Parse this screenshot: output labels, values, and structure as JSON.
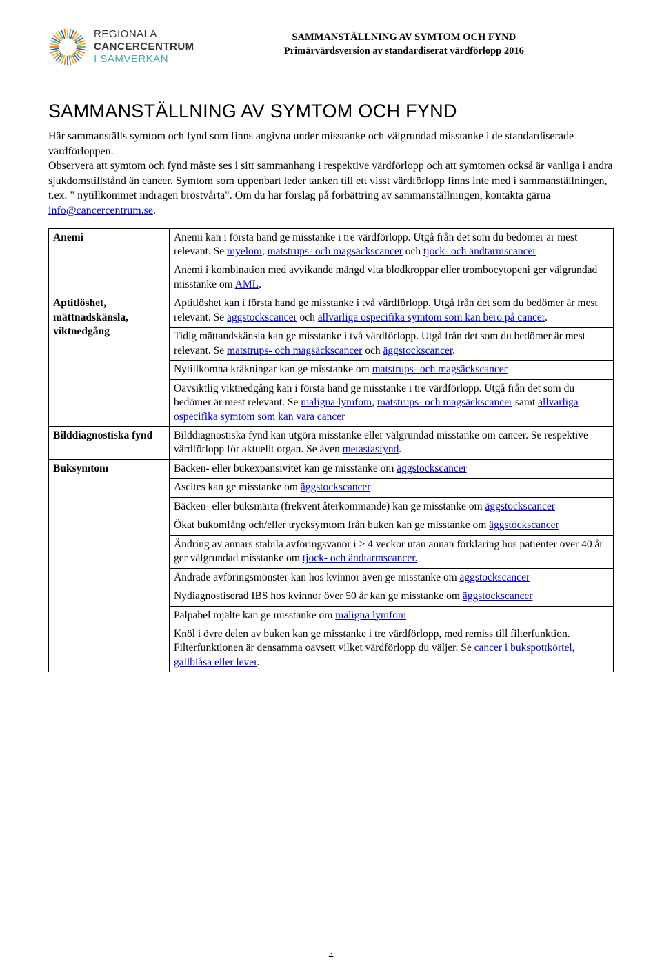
{
  "header": {
    "org_line1": "REGIONALA",
    "org_line2": "CANCERCENTRUM",
    "org_line3": "I SAMVERKAN",
    "title_line1": "SAMMANSTÄLLNING AV SYMTOM OCH FYND",
    "title_line2": "Primärvärdsversion av standardiserat värdförlopp 2016"
  },
  "main_title": "SAMMANSTÄLLNING AV SYMTOM OCH FYND",
  "intro": {
    "p1": "Här sammanställs symtom och fynd som finns angivna under misstanke och välgrundad misstanke i de standardiserade värdförloppen.",
    "p2a": "Observera att symtom och fynd måste ses i sitt sammanhang i respektive värdförlopp och att symtomen också är vanliga i andra sjukdomstillstånd än cancer. Symtom som uppenbart leder tanken till ett visst värdförlopp finns inte med i sammanställningen, t.ex. \" nytillkommet indragen bröstvårta\". Om du har förslag på förbättring av sammanställningen, kontakta gärna ",
    "email": "info@cancercentrum.se",
    "p2b": "."
  },
  "rows": {
    "anemi_label": "Anemi",
    "anemi_1a": "Anemi kan i första hand ge misstanke i tre värdförlopp. Utgå från det som du bedömer är mest relevant. Se ",
    "anemi_1_l1": "myelom",
    "anemi_1b": ", ",
    "anemi_1_l2": "matstrups- och magsäckscancer",
    "anemi_1c": " och ",
    "anemi_1_l3": "tjock- och ändtarmscancer",
    "anemi_2a": "Anemi i kombination med avvikande mängd vita blodkroppar eller trombocytopeni ger välgrundad misstanke om ",
    "anemi_2_l1": "AML",
    "anemi_2b": ".",
    "aptit_label": "Aptitlöshet, mättnadskänsla, viktnedgång",
    "aptit_1a": "Aptitlöshet kan i första hand ge misstanke i två värdförlopp. Utgå från det som du bedömer är mest relevant. Se ",
    "aptit_1_l1": "äggstockscancer",
    "aptit_1b": " och ",
    "aptit_1_l2": "allvarliga ospecifika symtom som kan bero på cancer",
    "aptit_1c": ".",
    "aptit_2a": "Tidig mättandskänsla kan ge misstanke i två värdförlopp. Utgå från det som du bedömer är mest relevant. Se ",
    "aptit_2_l1": "matstrups- och magsäckscancer",
    "aptit_2b": " och ",
    "aptit_2_l2": "äggstockscancer",
    "aptit_2c": ".",
    "aptit_3a": "Nytillkomna kräkningar kan ge misstanke om ",
    "aptit_3_l1": "matstrups- och magsäckscancer",
    "aptit_4a": "Oavsiktlig viktnedgång kan i första hand ge misstanke i tre värdförlopp. Utgå från det som du bedömer är mest relevant. Se ",
    "aptit_4_l1": "maligna lymfom",
    "aptit_4b": ", ",
    "aptit_4_l2": "matstrups- och magsäckscancer",
    "aptit_4c": " samt ",
    "aptit_4_l3": "allvarliga ospecifika symtom som kan vara cancer",
    "bild_label": "Bilddiagnostiska fynd",
    "bild_1a": "Bilddiagnostiska fynd kan utgöra misstanke eller välgrundad misstanke om cancer. Se respektive värdförlopp för aktuellt organ. Se även ",
    "bild_1_l1": "metastasfynd",
    "bild_1b": ".",
    "buk_label": "Buksymtom",
    "buk_1a": "Bäcken- eller bukexpansivitet kan ge misstanke om ",
    "buk_1_l1": "äggstockscancer",
    "buk_2a": "Ascites kan ge misstanke om ",
    "buk_2_l1": "äggstockscancer",
    "buk_3a": "Bäcken- eller buksmärta (frekvent återkommande) kan ge misstanke om ",
    "buk_3_l1": "äggstockscancer",
    "buk_4a": "Ökat bukomfång och/eller trycksymtom från buken kan ge misstanke om ",
    "buk_4_l1": "äggstockscancer",
    "buk_5a": "Ändring av annars stabila avföringsvanor i > 4 veckor utan annan förklaring hos patienter över 40 år ger välgrundad misstanke om ",
    "buk_5_l1": "tjock- och ändtarmscancer.",
    "buk_6a": "Ändrade avföringsmönster kan hos kvinnor även ge misstanke om ",
    "buk_6_l1": "äggstockscancer",
    "buk_7a": "Nydiagnostiserad IBS hos kvinnor över 50 år kan ge misstanke om ",
    "buk_7_l1": "äggstockscancer",
    "buk_8a": "Palpabel mjälte kan ge misstanke om ",
    "buk_8_l1": "maligna lymfom",
    "buk_9a": "Knöl i övre delen av buken kan ge misstanke i tre värdförlopp, med remiss till filterfunktion. Filterfunktionen är densamma oavsett vilket värdförlopp du väljer. Se ",
    "buk_9_l1": "cancer i bukspottkörtel, gallblåsa eller lever",
    "buk_9b": "."
  },
  "page_num": "4",
  "colors": {
    "link": "#0000cc",
    "teal": "#49a8a8",
    "blue": "#2d5da8",
    "orange": "#e87722",
    "yellow": "#f0b800"
  }
}
